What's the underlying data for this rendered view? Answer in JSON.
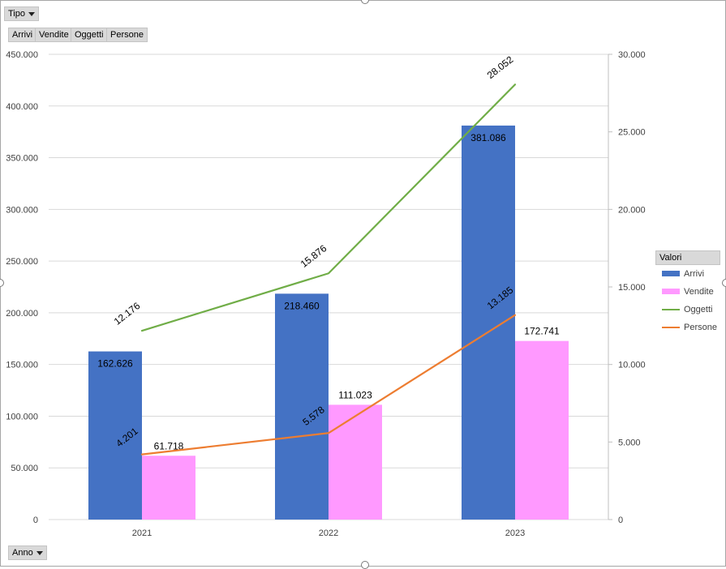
{
  "filters": {
    "page_filter_label": "Tipo",
    "series_fields": [
      "Arrivi",
      "Vendite",
      "Oggetti",
      "Persone"
    ],
    "axis_field_label": "Anno"
  },
  "legend": {
    "title": "Valori"
  },
  "colors": {
    "Arrivi": "#4472c4",
    "Vendite": "#ff99ff",
    "Oggetti": "#70ad47",
    "Persone": "#ed7d31"
  },
  "chart_data": {
    "type": "bar",
    "categories": [
      "2021",
      "2022",
      "2023"
    ],
    "series": [
      {
        "name": "Arrivi",
        "type": "bar",
        "axis": "primary",
        "values": [
          162626,
          218460,
          381086
        ],
        "labels": [
          "162.626",
          "218.460",
          "381.086"
        ]
      },
      {
        "name": "Vendite",
        "type": "bar",
        "axis": "primary",
        "values": [
          61718,
          111023,
          172741
        ],
        "labels": [
          "61.718",
          "111.023",
          "172.741"
        ]
      },
      {
        "name": "Oggetti",
        "type": "line",
        "axis": "secondary",
        "values": [
          12176,
          15876,
          28052
        ],
        "labels": [
          "12.176",
          "15.876",
          "28.052"
        ]
      },
      {
        "name": "Persone",
        "type": "line",
        "axis": "secondary",
        "values": [
          4201,
          5578,
          13185
        ],
        "labels": [
          "4.201",
          "5.578",
          "13.185"
        ]
      }
    ],
    "ylim": [
      0,
      450000
    ],
    "yticks": [
      "0",
      "50.000",
      "100.000",
      "150.000",
      "200.000",
      "250.000",
      "300.000",
      "350.000",
      "400.000",
      "450.000"
    ],
    "y2lim": [
      0,
      30000
    ],
    "y2ticks": [
      "0",
      "5.000",
      "10.000",
      "15.000",
      "20.000",
      "25.000",
      "30.000"
    ],
    "grid": true,
    "legend_position": "right"
  }
}
